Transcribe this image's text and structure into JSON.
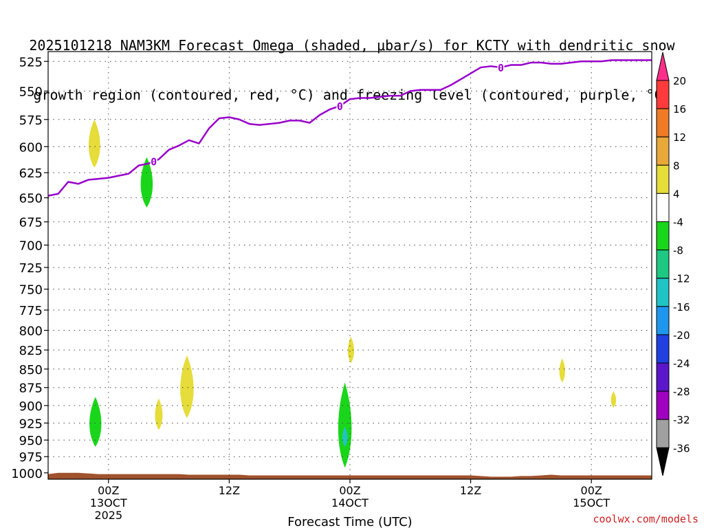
{
  "chart_data": {
    "type": "heatmap",
    "title_line1": "2025101218 NAM3KM Forecast Omega (shaded, μbar/s) for KCTY with dendritic snow",
    "title_line2": "growth region (contoured, red, °C) and freezing level (contoured, purple, °C)",
    "xlabel": "Forecast Time (UTC)",
    "x_unit": "hours since 2025-10-12 18Z",
    "xlim": [
      0,
      60
    ],
    "x_ticks": [
      {
        "x": 6,
        "label": "00Z",
        "sub1": "13OCT",
        "sub2": "2025"
      },
      {
        "x": 18,
        "label": "12Z",
        "sub1": "",
        "sub2": ""
      },
      {
        "x": 30,
        "label": "00Z",
        "sub1": "14OCT",
        "sub2": ""
      },
      {
        "x": 42,
        "label": "12Z",
        "sub1": "",
        "sub2": ""
      },
      {
        "x": 54,
        "label": "00Z",
        "sub1": "15OCT",
        "sub2": ""
      }
    ],
    "y_levels": [
      525,
      550,
      575,
      600,
      625,
      650,
      675,
      700,
      725,
      750,
      775,
      800,
      825,
      850,
      875,
      900,
      925,
      950,
      975,
      1000
    ],
    "ylim": [
      1010,
      517
    ],
    "y_scale": "log-pressure",
    "grid": true,
    "freezing_level": {
      "label": "0",
      "color": "#9900cc",
      "x": [
        0,
        1,
        2,
        3,
        4,
        5,
        6,
        7,
        8,
        9,
        10,
        11,
        12,
        13,
        14,
        15,
        16,
        17,
        18,
        19,
        20,
        21,
        22,
        23,
        24,
        25,
        26,
        27,
        28,
        29,
        30,
        31,
        32,
        33,
        34,
        35,
        36,
        37,
        38,
        39,
        40,
        41,
        42,
        43,
        44,
        45,
        46,
        47,
        48,
        49,
        50,
        51,
        52,
        53,
        54,
        55,
        56,
        57,
        58,
        59,
        60
      ],
      "y": [
        648,
        646,
        634,
        636,
        632,
        631,
        630,
        628,
        626,
        618,
        616,
        612,
        603,
        599,
        594,
        597,
        583,
        574,
        573,
        575,
        579,
        580,
        579,
        578,
        576,
        576,
        578,
        571,
        566,
        563,
        557,
        556,
        556,
        555,
        554,
        554,
        550,
        549,
        549,
        549,
        545,
        540,
        535,
        530,
        529,
        530,
        528,
        528,
        526,
        526,
        527,
        527,
        526,
        525,
        525,
        525,
        524,
        524,
        524,
        524,
        524
      ],
      "contour_labels_at_x": [
        10.5,
        29,
        45
      ]
    },
    "colorbar": {
      "labels": [
        "20",
        "16",
        "12",
        "8",
        "4",
        "-4",
        "-8",
        "-12",
        "-16",
        "-20",
        "-24",
        "-28",
        "-32",
        "-36"
      ],
      "colors": [
        "#ff2e8a",
        "#ff3b3b",
        "#f07a25",
        "#e8a83a",
        "#e6dc3a",
        "#ffffff",
        "#1ad61a",
        "#1ec882",
        "#20c4c4",
        "#1e96ee",
        "#2040e0",
        "#5a16c8",
        "#a000c0",
        "#a0a0a0",
        "#000000"
      ]
    },
    "omega_features": [
      {
        "x": 4.6,
        "p_top": 575,
        "p_bottom": 620,
        "color": "#e6dc3a"
      },
      {
        "x": 9.8,
        "p_top": 610,
        "p_bottom": 660,
        "color": "#1ad61a"
      },
      {
        "x": 4.7,
        "p_top": 888,
        "p_bottom": 960,
        "color": "#1ad61a"
      },
      {
        "x": 11.0,
        "p_top": 890,
        "p_bottom": 935,
        "color": "#e6dc3a"
      },
      {
        "x": 13.8,
        "p_top": 832,
        "p_bottom": 918,
        "color": "#e6dc3a"
      },
      {
        "x": 29.5,
        "p_top": 868,
        "p_bottom": 992,
        "color": "#1ad61a"
      },
      {
        "x": 29.5,
        "p_top": 930,
        "p_bottom": 960,
        "color": "#20c4c4"
      },
      {
        "x": 30.1,
        "p_top": 808,
        "p_bottom": 842,
        "color": "#e6dc3a"
      },
      {
        "x": 51.1,
        "p_top": 836,
        "p_bottom": 868,
        "color": "#e6dc3a"
      },
      {
        "x": 56.2,
        "p_top": 880,
        "p_bottom": 903,
        "color": "#e6dc3a"
      }
    ],
    "terrain": {
      "color": "#a0522d",
      "x": [
        0,
        1,
        2,
        3,
        4,
        5,
        6,
        7,
        8,
        9,
        10,
        11,
        12,
        13,
        14,
        15,
        16,
        17,
        18,
        19,
        20,
        21,
        22,
        23,
        24,
        25,
        26,
        27,
        28,
        29,
        30,
        31,
        32,
        33,
        34,
        35,
        36,
        37,
        38,
        39,
        40,
        41,
        42,
        43,
        44,
        45,
        46,
        47,
        48,
        49,
        50,
        51,
        52,
        53,
        54,
        55,
        56,
        57,
        58,
        59,
        60
      ],
      "p": [
        1002,
        1000,
        1000,
        1000,
        1001,
        1002,
        1002,
        1002,
        1002,
        1002,
        1002,
        1002,
        1002,
        1002,
        1003,
        1003,
        1003,
        1003,
        1003,
        1003,
        1004,
        1004,
        1004,
        1004,
        1004,
        1004,
        1004,
        1004,
        1004,
        1004,
        1004,
        1004,
        1004,
        1004,
        1004,
        1004,
        1004,
        1004,
        1004,
        1004,
        1004,
        1004,
        1004,
        1005,
        1006,
        1006,
        1006,
        1005,
        1005,
        1004,
        1003,
        1004,
        1004,
        1004,
        1004,
        1004,
        1004,
        1004,
        1004,
        1004,
        1004
      ]
    }
  },
  "credit": "coolwx.com/models"
}
